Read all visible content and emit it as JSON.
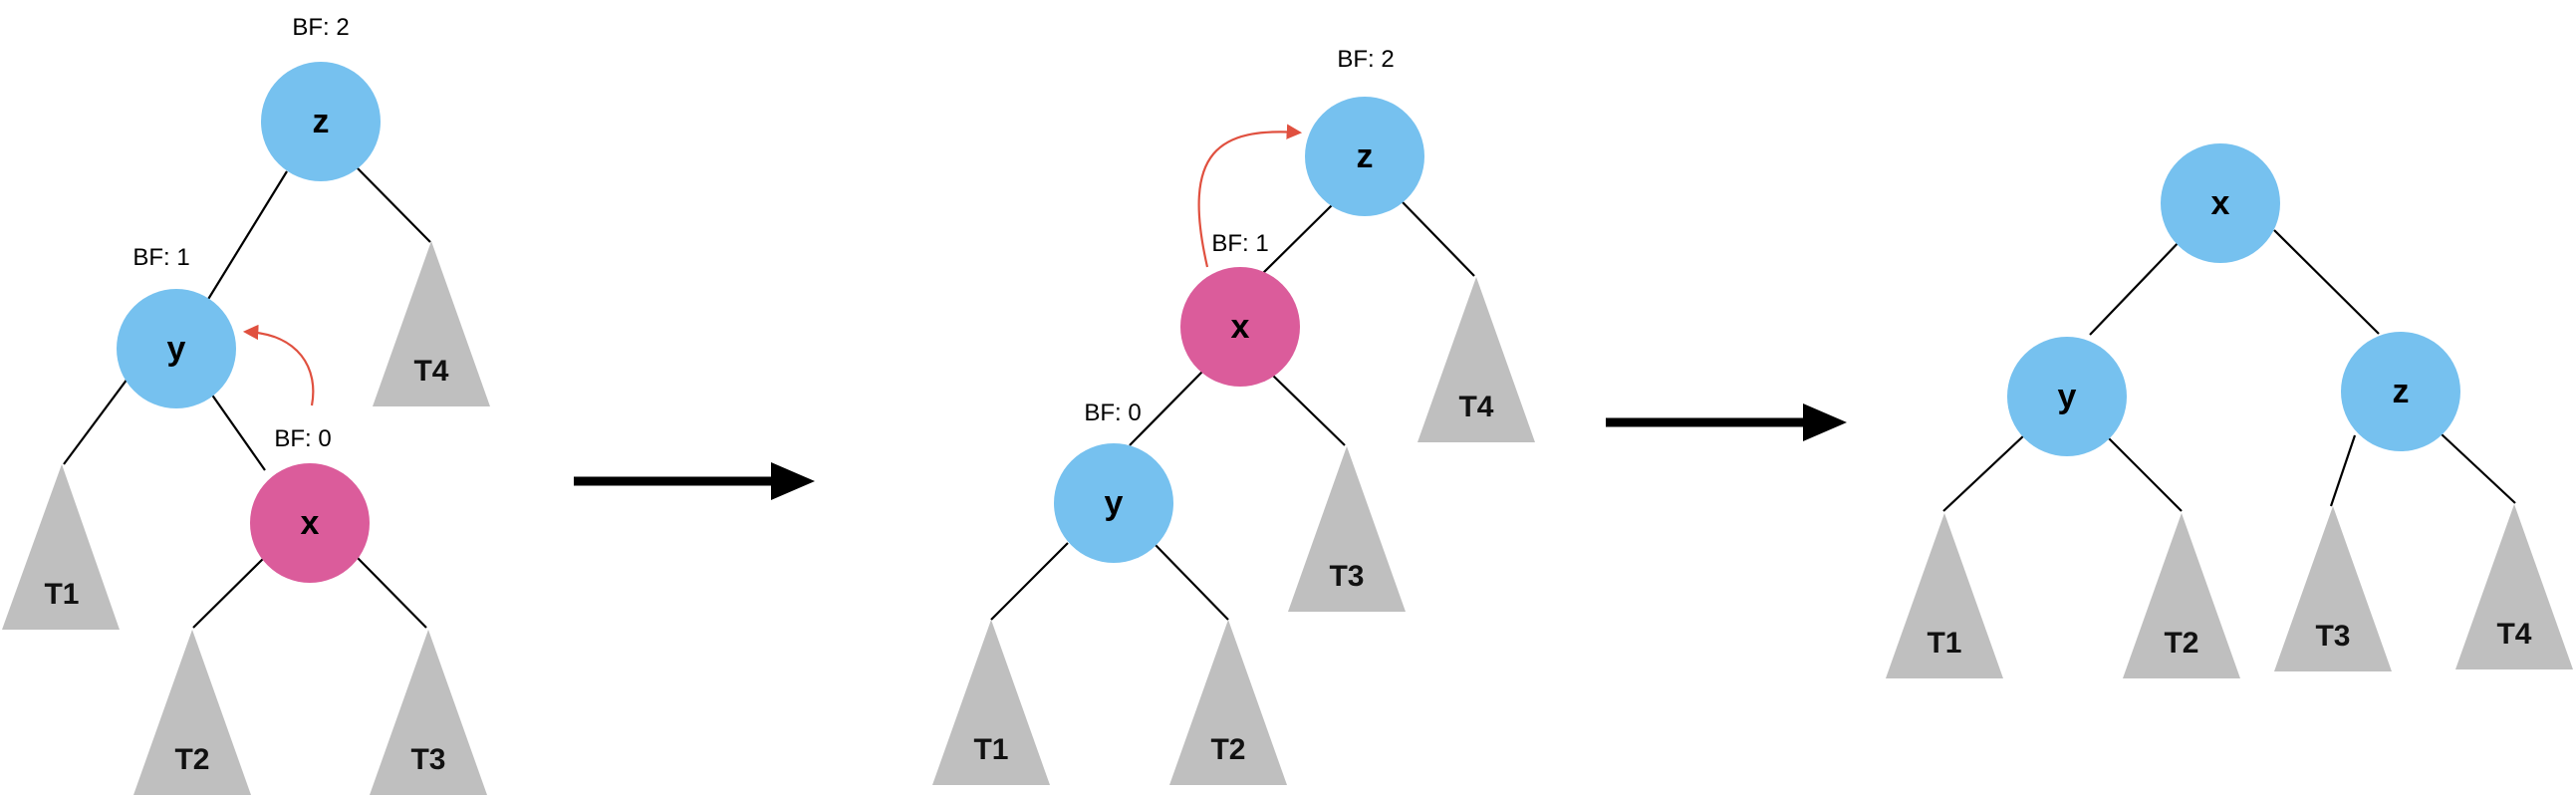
{
  "colors": {
    "blue_node": "#76C1EF",
    "pink_node": "#DB5C9B",
    "subtree": "#BFBFBF",
    "rotation_arrow": "#E0503F"
  },
  "stage1": {
    "nodes": {
      "z": "z",
      "y": "y",
      "x": "x"
    },
    "subtrees": {
      "T1": "T1",
      "T2": "T2",
      "T3": "T3",
      "T4": "T4"
    },
    "balance": {
      "z": "BF: 2",
      "y": "BF: 1",
      "x": "BF: 0"
    }
  },
  "stage2": {
    "nodes": {
      "z": "z",
      "x": "x",
      "y": "y"
    },
    "subtrees": {
      "T1": "T1",
      "T2": "T2",
      "T3": "T3",
      "T4": "T4"
    },
    "balance": {
      "z": "BF: 2",
      "x": "BF: 1",
      "y": "BF: 0"
    }
  },
  "stage3": {
    "nodes": {
      "x": "x",
      "y": "y",
      "z": "z"
    },
    "subtrees": {
      "T1": "T1",
      "T2": "T2",
      "T3": "T3",
      "T4": "T4"
    }
  }
}
